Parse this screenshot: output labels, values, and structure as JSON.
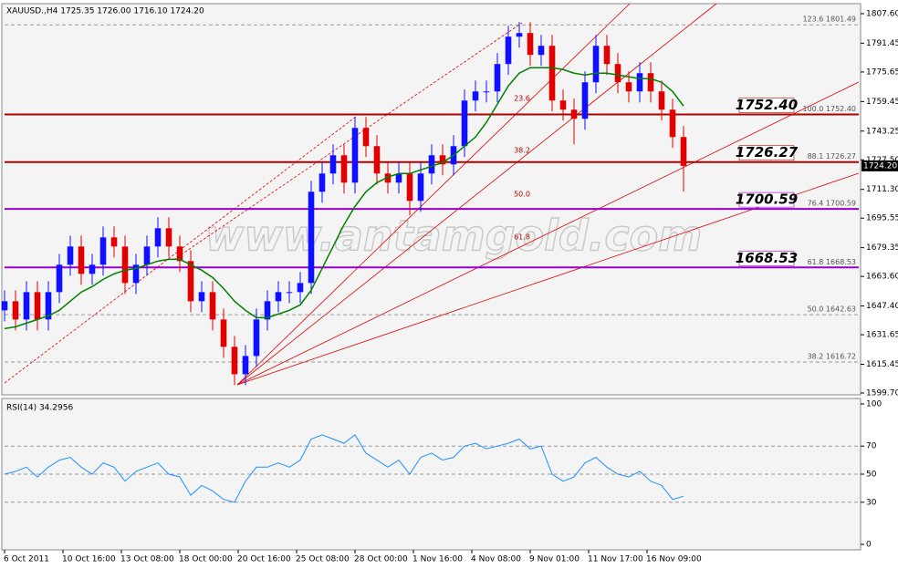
{
  "chart_data": [
    {
      "type": "candlestick",
      "title": "XAUUSD.,H4  1725.35 1726.00 1716.10 1724.20",
      "watermark": "www.antamgold.com",
      "x": [
        0,
        3,
        6,
        9,
        12,
        15,
        18,
        21,
        24,
        27,
        30,
        33,
        36,
        39,
        42,
        45,
        48,
        51,
        54,
        57,
        60,
        63,
        66,
        69,
        72,
        75,
        78,
        81,
        84,
        87,
        90,
        93,
        96,
        99,
        102,
        105,
        108,
        111,
        114,
        117,
        120,
        123,
        126,
        129,
        132,
        135,
        138,
        141,
        144,
        147,
        150,
        153,
        156,
        159,
        162,
        165,
        168,
        171,
        174,
        177,
        180,
        183,
        186
      ],
      "open": [
        1645,
        1650,
        1640,
        1655,
        1640,
        1655,
        1670,
        1680,
        1665,
        1670,
        1685,
        1680,
        1660,
        1670,
        1680,
        1690,
        1680,
        1672,
        1650,
        1655,
        1640,
        1625,
        1610,
        1620,
        1640,
        1650,
        1655,
        1655,
        1660,
        1710,
        1720,
        1730,
        1715,
        1745,
        1735,
        1720,
        1715,
        1720,
        1705,
        1720,
        1730,
        1725,
        1735,
        1760,
        1765,
        1765,
        1780,
        1795,
        1797,
        1785,
        1790,
        1760,
        1755,
        1750,
        1770,
        1790,
        1780,
        1770,
        1765,
        1775,
        1765,
        1755,
        1740
      ],
      "high": [
        1656,
        1656,
        1661,
        1661,
        1661,
        1676,
        1686,
        1686,
        1676,
        1691,
        1691,
        1686,
        1676,
        1686,
        1696,
        1696,
        1686,
        1678,
        1661,
        1661,
        1646,
        1631,
        1626,
        1646,
        1656,
        1661,
        1661,
        1666,
        1716,
        1726,
        1736,
        1736,
        1751,
        1751,
        1741,
        1726,
        1726,
        1726,
        1726,
        1736,
        1736,
        1741,
        1766,
        1771,
        1771,
        1786,
        1801,
        1803,
        1803,
        1796,
        1796,
        1766,
        1761,
        1776,
        1796,
        1796,
        1786,
        1776,
        1781,
        1781,
        1771,
        1761,
        1746
      ],
      "low": [
        1639,
        1634,
        1634,
        1634,
        1634,
        1649,
        1664,
        1659,
        1659,
        1664,
        1674,
        1654,
        1654,
        1664,
        1674,
        1674,
        1666,
        1644,
        1644,
        1634,
        1619,
        1604,
        1604,
        1614,
        1634,
        1644,
        1649,
        1649,
        1654,
        1704,
        1714,
        1709,
        1709,
        1729,
        1714,
        1709,
        1709,
        1697,
        1699,
        1714,
        1719,
        1719,
        1729,
        1754,
        1759,
        1759,
        1774,
        1789,
        1779,
        1779,
        1754,
        1749,
        1736,
        1744,
        1764,
        1774,
        1764,
        1759,
        1759,
        1759,
        1749,
        1734,
        1710
      ],
      "close": [
        1650,
        1640,
        1655,
        1640,
        1655,
        1670,
        1680,
        1665,
        1670,
        1685,
        1680,
        1660,
        1670,
        1680,
        1690,
        1680,
        1672,
        1650,
        1655,
        1640,
        1625,
        1610,
        1620,
        1640,
        1650,
        1655,
        1655,
        1660,
        1710,
        1720,
        1730,
        1715,
        1745,
        1735,
        1720,
        1715,
        1720,
        1705,
        1720,
        1730,
        1725,
        1735,
        1760,
        1765,
        1765,
        1780,
        1795,
        1797,
        1785,
        1790,
        1760,
        1755,
        1750,
        1770,
        1790,
        1780,
        1770,
        1765,
        1775,
        1765,
        1755,
        1740,
        1724.2
      ],
      "ma": [
        1635,
        1636,
        1638,
        1640,
        1642,
        1645,
        1650,
        1655,
        1658,
        1662,
        1665,
        1667,
        1668,
        1670,
        1672,
        1673,
        1673,
        1670,
        1667,
        1663,
        1657,
        1650,
        1645,
        1641,
        1641,
        1643,
        1645,
        1648,
        1656,
        1668,
        1680,
        1692,
        1702,
        1710,
        1715,
        1718,
        1720,
        1720,
        1722,
        1724,
        1726,
        1730,
        1735,
        1740,
        1748,
        1758,
        1768,
        1775,
        1778,
        1778,
        1778,
        1777,
        1775,
        1774,
        1775,
        1775,
        1774,
        1773,
        1772,
        1772,
        1770,
        1765,
        1757
      ],
      "up_color": "#1010ff",
      "down_color": "#e00000",
      "ma_color": "#008000",
      "xlim": [
        0,
        234
      ],
      "ylim": [
        1599.7,
        1807.6
      ],
      "yticks": [
        {
          "value": 1807.6,
          "label": "1807.60"
        },
        {
          "value": 1791.45,
          "label": "1791.45"
        },
        {
          "value": 1775.65,
          "label": "1775.65"
        },
        {
          "value": 1759.45,
          "label": "1759.45"
        },
        {
          "value": 1743.25,
          "label": "1743.25"
        },
        {
          "value": 1727.5,
          "label": "1727.50"
        },
        {
          "value": 1711.3,
          "label": "1711.30"
        },
        {
          "value": 1695.55,
          "label": "1695.55"
        },
        {
          "value": 1679.35,
          "label": "1679.35"
        },
        {
          "value": 1663.6,
          "label": "1663.60"
        },
        {
          "value": 1647.4,
          "label": "1647.40"
        },
        {
          "value": 1631.65,
          "label": "1631.65"
        },
        {
          "value": 1615.45,
          "label": "1615.45"
        },
        {
          "value": 1599.7,
          "label": "1599.70"
        }
      ],
      "current_price": {
        "value": 1724.2,
        "label": "1724.20"
      },
      "fib_levels": [
        {
          "value": 1801.49,
          "label": "123.6  1801.49"
        },
        {
          "value": 1752.4,
          "label": "100.0  1752.40"
        },
        {
          "value": 1726.27,
          "label": "88.1  1726.27"
        },
        {
          "value": 1700.59,
          "label": "76.4  1700.59"
        },
        {
          "value": 1668.53,
          "label": "61.8  1668.53"
        },
        {
          "value": 1642.63,
          "label": "50.0  1642.63"
        },
        {
          "value": 1616.72,
          "label": "38.2    1616.72"
        }
      ],
      "hlines": [
        {
          "value": 1752.4,
          "label": "1752.40",
          "color": "#b00000"
        },
        {
          "value": 1726.27,
          "label": "1726.27",
          "color": "#b00000"
        },
        {
          "value": 1700.59,
          "label": "1700.59",
          "color": "#9900cc"
        },
        {
          "value": 1668.53,
          "label": "1668.53",
          "color": "#9900cc"
        }
      ],
      "fan_labels": [
        "23.6",
        "38.2",
        "50.0",
        "61.8"
      ]
    },
    {
      "type": "line",
      "title": "RSI(14) 34.2956",
      "color": "#1e90ff",
      "x": [
        0,
        3,
        6,
        9,
        12,
        15,
        18,
        21,
        24,
        27,
        30,
        33,
        36,
        39,
        42,
        45,
        48,
        51,
        54,
        57,
        60,
        63,
        66,
        69,
        72,
        75,
        78,
        81,
        84,
        87,
        90,
        93,
        96,
        99,
        102,
        105,
        108,
        111,
        114,
        117,
        120,
        123,
        126,
        129,
        132,
        135,
        138,
        141,
        144,
        147,
        150,
        153,
        156,
        159,
        162,
        165,
        168,
        171,
        174,
        177,
        180,
        183,
        186
      ],
      "values": [
        50,
        52,
        55,
        48,
        55,
        60,
        62,
        55,
        50,
        58,
        55,
        45,
        52,
        55,
        58,
        50,
        48,
        35,
        42,
        38,
        32,
        30,
        45,
        55,
        55,
        58,
        55,
        60,
        75,
        78,
        75,
        72,
        78,
        65,
        60,
        55,
        60,
        50,
        62,
        65,
        60,
        62,
        70,
        72,
        68,
        70,
        72,
        75,
        68,
        70,
        50,
        45,
        48,
        58,
        62,
        55,
        50,
        48,
        52,
        45,
        42,
        32,
        34.2956
      ],
      "xlim": [
        0,
        234
      ],
      "ylim": [
        0,
        100
      ],
      "yticks": [
        0,
        30,
        50,
        70,
        100
      ],
      "grid_values": [
        30,
        50,
        70
      ],
      "xticks": [
        {
          "value": 0,
          "label": "6 Oct 2011"
        },
        {
          "value": 16,
          "label": "10 Oct 16:00"
        },
        {
          "value": 32,
          "label": "13 Oct 08:00"
        },
        {
          "value": 48,
          "label": "18 Oct 00:00"
        },
        {
          "value": 64,
          "label": "20 Oct 16:00"
        },
        {
          "value": 80,
          "label": "25 Oct 08:00"
        },
        {
          "value": 96,
          "label": "28 Oct 00:00"
        },
        {
          "value": 112,
          "label": "1 Nov 16:00"
        },
        {
          "value": 128,
          "label": "4 Nov 08:00"
        },
        {
          "value": 144,
          "label": "9 Nov 01:00"
        },
        {
          "value": 160,
          "label": "11 Nov 17:00"
        },
        {
          "value": 176,
          "label": "16 Nov 09:00"
        }
      ]
    }
  ]
}
